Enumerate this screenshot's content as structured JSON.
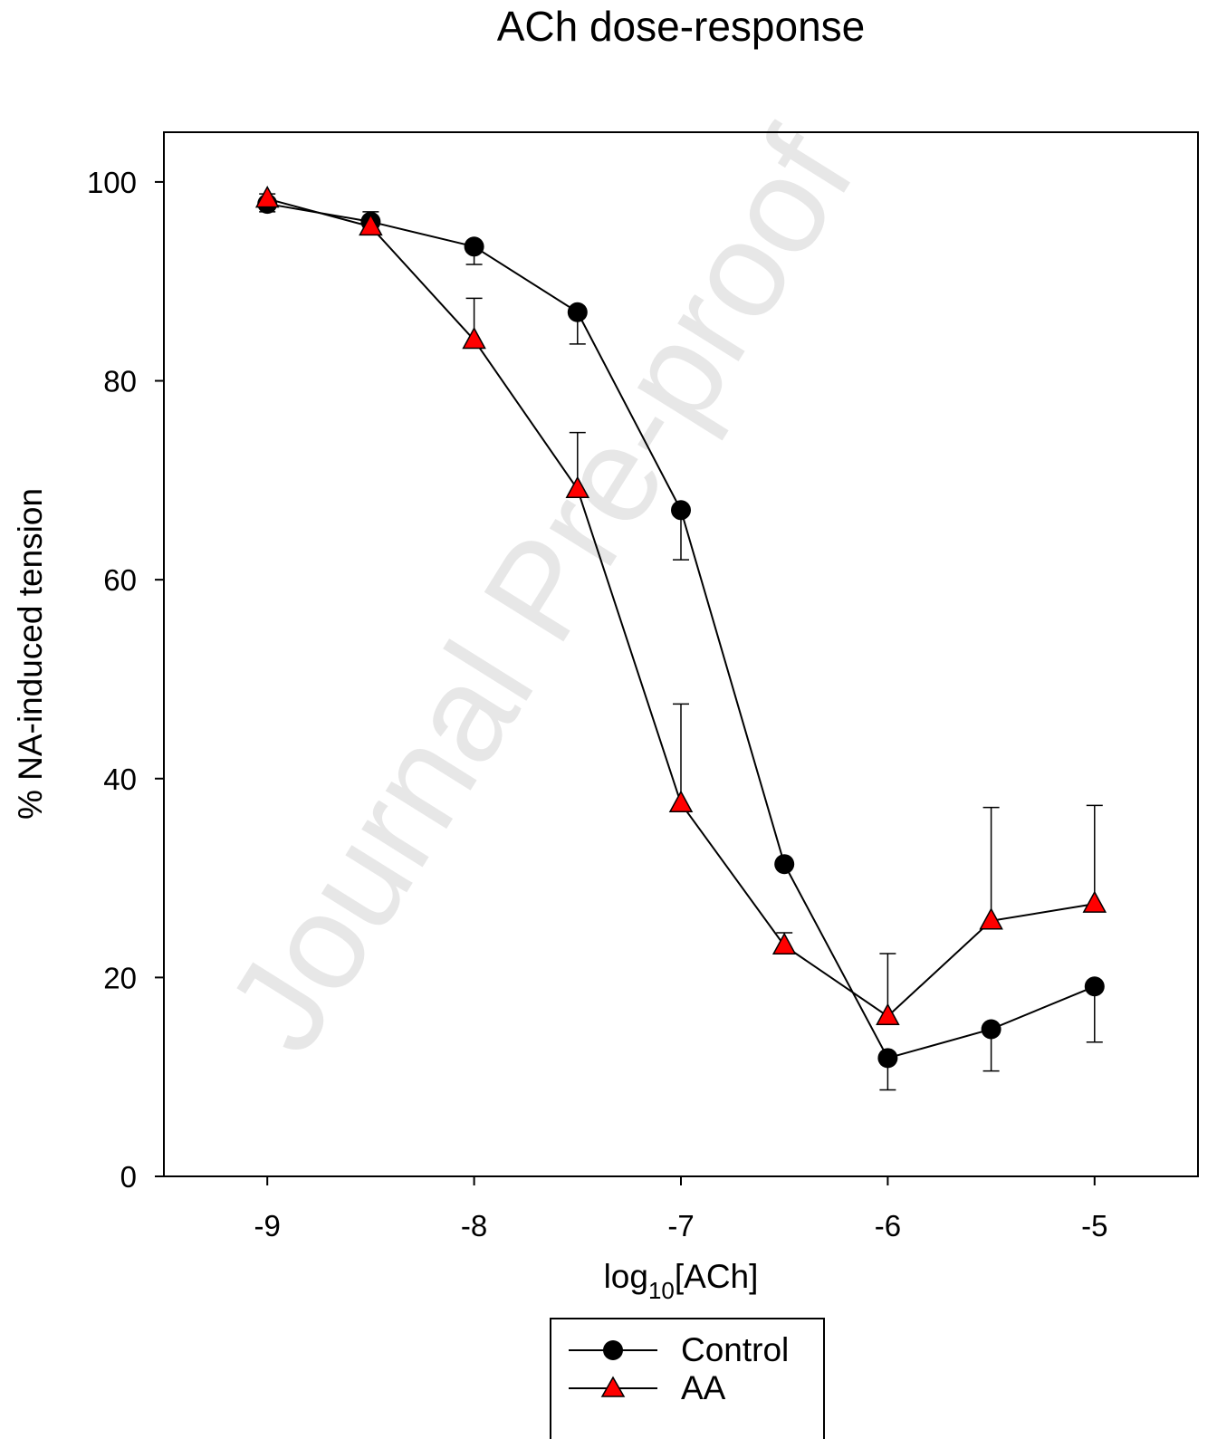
{
  "watermark": "Journal Pre-proof",
  "chart_data": {
    "type": "line",
    "title": "ACh dose-response",
    "xlabel": "log",
    "xlabel_sub": "10",
    "xlabel_tail": "[ACh]",
    "ylabel": "% NA-induced tension",
    "xlim": [
      -9.5,
      -4.5
    ],
    "ylim": [
      0,
      105
    ],
    "x_ticks": [
      -9,
      -8,
      -7,
      -6,
      -5
    ],
    "x_tick_labels": [
      "-9",
      "-8",
      "-7",
      "-6",
      "-5"
    ],
    "y_ticks": [
      0,
      20,
      40,
      60,
      80,
      100
    ],
    "y_tick_labels": [
      "0",
      "20",
      "40",
      "60",
      "80",
      "100"
    ],
    "grid": false,
    "legend_position": "bottom-center",
    "x": [
      -9,
      -8.5,
      -8,
      -7.5,
      -7,
      -6.5,
      -6,
      -5.5,
      -5
    ],
    "series": [
      {
        "name": "Control",
        "marker": "circle",
        "color": "#000000",
        "values": [
          97.8,
          96.0,
          93.5,
          86.9,
          67.0,
          31.4,
          11.9,
          14.8,
          19.1
        ],
        "error": [
          0.8,
          1.0,
          1.8,
          3.2,
          5.0,
          0,
          3.2,
          4.2,
          5.6
        ],
        "error_dir": [
          "down",
          "up",
          "down",
          "down",
          "down",
          "down",
          "down",
          "down",
          "down"
        ]
      },
      {
        "name": "AA",
        "marker": "triangle",
        "color": "#ff0000",
        "values": [
          98.3,
          95.5,
          84.1,
          69.1,
          37.5,
          23.2,
          16.1,
          25.7,
          27.4
        ],
        "error": [
          0.5,
          0,
          4.2,
          5.7,
          10.0,
          1.3,
          6.3,
          11.4,
          9.9
        ],
        "error_dir": [
          "up",
          "up",
          "up",
          "up",
          "up",
          "up",
          "up",
          "up",
          "up"
        ]
      }
    ]
  }
}
